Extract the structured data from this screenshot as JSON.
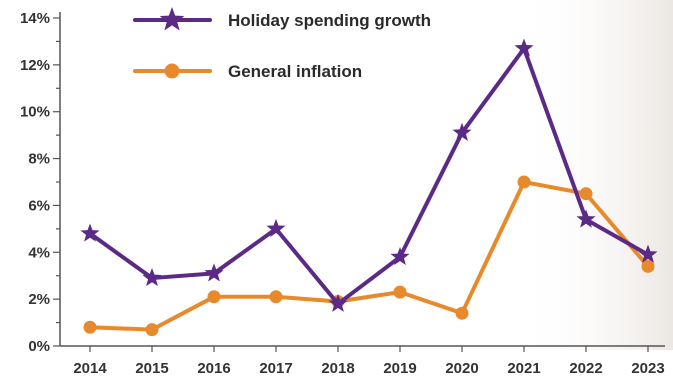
{
  "chart_data": {
    "type": "line",
    "title": "",
    "xlabel": "",
    "ylabel": "",
    "categories": [
      "2014",
      "2015",
      "2016",
      "2017",
      "2018",
      "2019",
      "2020",
      "2021",
      "2022",
      "2023"
    ],
    "ylim": [
      0,
      14
    ],
    "y_ticks": [
      "0%",
      "2%",
      "4%",
      "6%",
      "8%",
      "10%",
      "12%",
      "14%"
    ],
    "grid": false,
    "legend_position": "top-left",
    "series": [
      {
        "name": "Holiday spending growth",
        "values": [
          4.8,
          2.9,
          3.1,
          5.0,
          1.8,
          3.8,
          9.1,
          12.7,
          5.4,
          3.9
        ],
        "color": "#5b2a86",
        "marker": "star"
      },
      {
        "name": "General inflation",
        "values": [
          0.8,
          0.7,
          2.1,
          2.1,
          1.9,
          2.3,
          1.4,
          7.0,
          6.5,
          3.4
        ],
        "color": "#e8892b",
        "marker": "circle"
      }
    ]
  }
}
